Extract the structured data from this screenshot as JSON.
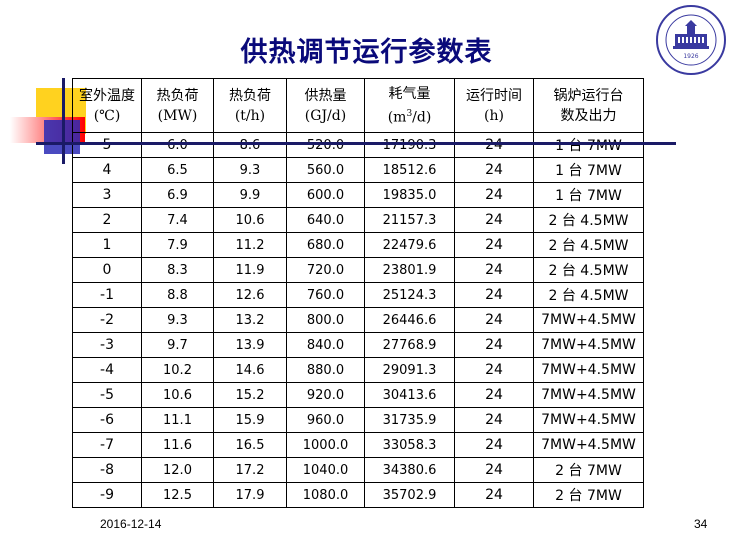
{
  "title": "供热调节运行参数表",
  "colors": {
    "title": "#0a0a7a",
    "yellow": "#ffd21f",
    "red": "#ff0000",
    "blue": "#2a2ab5"
  },
  "logo": {
    "icon": "university-seal-icon",
    "label": "1926"
  },
  "table": {
    "headers": [
      {
        "line1": "室外温度",
        "line2": "(℃)"
      },
      {
        "line1": "热负荷",
        "line2": "(MW)"
      },
      {
        "line1": "热负荷",
        "line2": "(t/h)"
      },
      {
        "line1": "供热量",
        "line2": "(GJ/d)"
      },
      {
        "line1": "耗气量",
        "line2_pre": "(m",
        "line2_sup": "3",
        "line2_post": "/d)"
      },
      {
        "line1": "运行时间",
        "line2": "(h)"
      },
      {
        "line1": "锅炉运行台",
        "line2": "数及出力"
      }
    ],
    "rows": [
      [
        "5",
        "6.0",
        "8.6",
        "520.0",
        "17190.3",
        "24",
        "1 台 7MW"
      ],
      [
        "4",
        "6.5",
        "9.3",
        "560.0",
        "18512.6",
        "24",
        "1 台 7MW"
      ],
      [
        "3",
        "6.9",
        "9.9",
        "600.0",
        "19835.0",
        "24",
        "1 台 7MW"
      ],
      [
        "2",
        "7.4",
        "10.6",
        "640.0",
        "21157.3",
        "24",
        "2 台 4.5MW"
      ],
      [
        "1",
        "7.9",
        "11.2",
        "680.0",
        "22479.6",
        "24",
        "2 台 4.5MW"
      ],
      [
        "0",
        "8.3",
        "11.9",
        "720.0",
        "23801.9",
        "24",
        "2 台 4.5MW"
      ],
      [
        "-1",
        "8.8",
        "12.6",
        "760.0",
        "25124.3",
        "24",
        "2 台 4.5MW"
      ],
      [
        "-2",
        "9.3",
        "13.2",
        "800.0",
        "26446.6",
        "24",
        "7MW+4.5MW"
      ],
      [
        "-3",
        "9.7",
        "13.9",
        "840.0",
        "27768.9",
        "24",
        "7MW+4.5MW"
      ],
      [
        "-4",
        "10.2",
        "14.6",
        "880.0",
        "29091.3",
        "24",
        "7MW+4.5MW"
      ],
      [
        "-5",
        "10.6",
        "15.2",
        "920.0",
        "30413.6",
        "24",
        "7MW+4.5MW"
      ],
      [
        "-6",
        "11.1",
        "15.9",
        "960.0",
        "31735.9",
        "24",
        "7MW+4.5MW"
      ],
      [
        "-7",
        "11.6",
        "16.5",
        "1000.0",
        "33058.3",
        "24",
        "7MW+4.5MW"
      ],
      [
        "-8",
        "12.0",
        "17.2",
        "1040.0",
        "34380.6",
        "24",
        "2 台 7MW"
      ],
      [
        "-9",
        "12.5",
        "17.9",
        "1080.0",
        "35702.9",
        "24",
        "2 台 7MW"
      ]
    ]
  },
  "footer": {
    "date": "2016-12-14",
    "page": "34"
  }
}
